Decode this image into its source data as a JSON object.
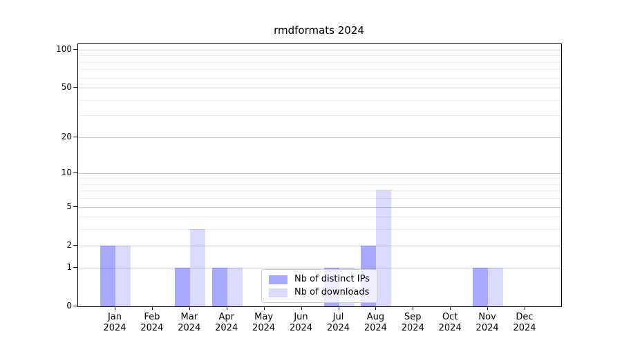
{
  "title": "rmdformats 2024",
  "legend": {
    "items": [
      {
        "label": "Nb of distinct IPs",
        "color": "rgba(0,0,255,0.34)"
      },
      {
        "label": "Nb of downloads",
        "color": "rgba(0,0,255,0.14)"
      }
    ]
  },
  "axes": {
    "y_tick_labels": [
      "0",
      "1",
      "2",
      "5",
      "10",
      "20",
      "50",
      "100"
    ],
    "x_tick_labels": [
      {
        "month": "Jan",
        "year": "2024"
      },
      {
        "month": "Feb",
        "year": "2024"
      },
      {
        "month": "Mar",
        "year": "2024"
      },
      {
        "month": "Apr",
        "year": "2024"
      },
      {
        "month": "May",
        "year": "2024"
      },
      {
        "month": "Jun",
        "year": "2024"
      },
      {
        "month": "Jul",
        "year": "2024"
      },
      {
        "month": "Aug",
        "year": "2024"
      },
      {
        "month": "Sep",
        "year": "2024"
      },
      {
        "month": "Oct",
        "year": "2024"
      },
      {
        "month": "Nov",
        "year": "2024"
      },
      {
        "month": "Dec",
        "year": "2024"
      }
    ]
  },
  "colors": {
    "bar_ips": "rgba(0,0,255,0.34)",
    "bar_downloads": "rgba(0,0,255,0.14)",
    "grid_major": "#c9c9c9",
    "grid_minor": "#ececec",
    "spine": "#000000",
    "background": "#ffffff"
  },
  "chart_data": {
    "type": "bar",
    "title": "rmdformats 2024",
    "categories": [
      "Jan 2024",
      "Feb 2024",
      "Mar 2024",
      "Apr 2024",
      "May 2024",
      "Jun 2024",
      "Jul 2024",
      "Aug 2024",
      "Sep 2024",
      "Oct 2024",
      "Nov 2024",
      "Dec 2024"
    ],
    "series": [
      {
        "name": "Nb of distinct IPs",
        "key": "ips",
        "color": "rgba(0,0,255,0.34)",
        "values": [
          2,
          0,
          1,
          1,
          0,
          0,
          1,
          2,
          0,
          0,
          1,
          0
        ]
      },
      {
        "name": "Nb of downloads",
        "key": "downloads",
        "color": "rgba(0,0,255,0.14)",
        "values": [
          2,
          0,
          3,
          1,
          0,
          0,
          1,
          7,
          0,
          0,
          1,
          0
        ]
      }
    ],
    "xlabel": "",
    "ylabel": "",
    "yscale": "log1p",
    "ylim": [
      0,
      110.6
    ],
    "y_major_ticks": [
      0,
      1,
      2,
      5,
      10,
      20,
      50,
      100
    ],
    "y_minor_gridlines": [
      3,
      4,
      6,
      7,
      8,
      9,
      30,
      40,
      60,
      70,
      80,
      90
    ],
    "grid": "horizontal",
    "legend_position": "lower center"
  }
}
